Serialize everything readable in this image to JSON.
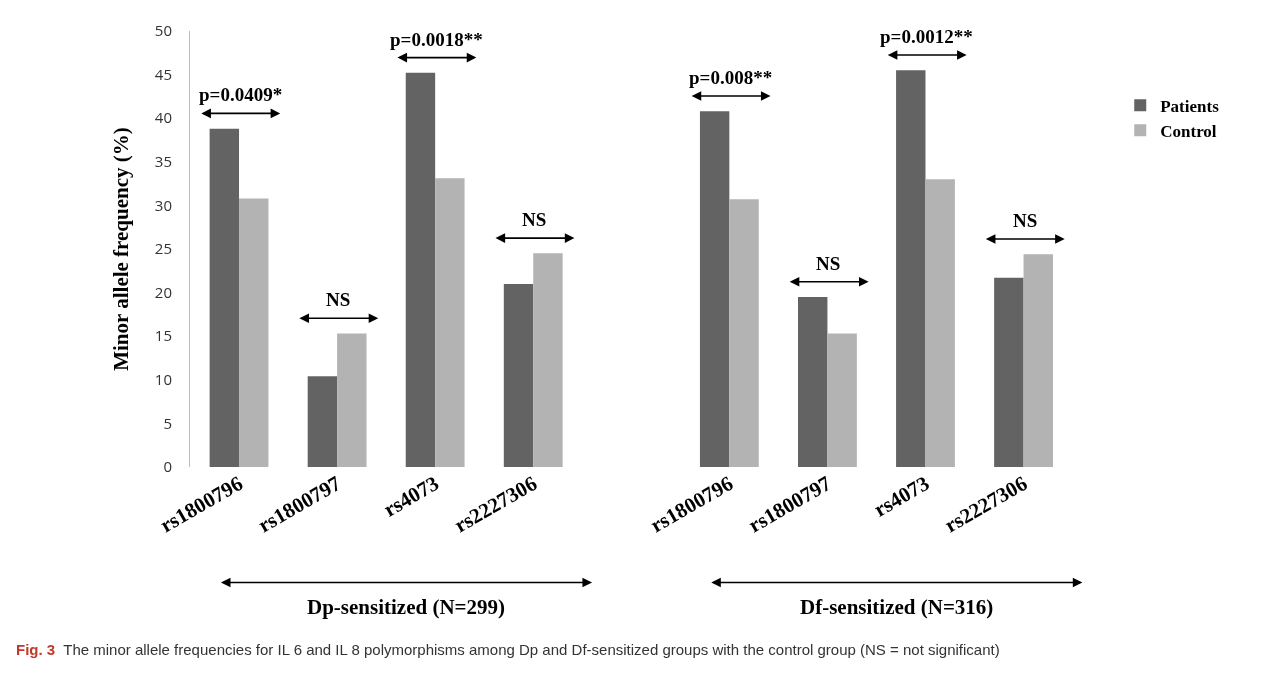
{
  "chart_data": {
    "type": "bar",
    "ylabel": "Minor allele frequency (%)",
    "categories": [
      "rs1800796",
      "rs1800797",
      "rs4073",
      "rs2227306",
      null,
      "rs1800796",
      "rs1800797",
      "rs4073",
      "rs2227306"
    ],
    "series": [
      {
        "name": "Patients",
        "color": "#636363",
        "values": [
          38.8,
          10.4,
          45.2,
          21.0,
          null,
          40.8,
          19.5,
          45.5,
          21.7
        ]
      },
      {
        "name": "Control",
        "color": "#b3b3b3",
        "values": [
          30.8,
          15.3,
          33.1,
          24.5,
          null,
          30.7,
          15.3,
          33.0,
          24.4
        ]
      }
    ],
    "ylim": [
      0,
      50
    ],
    "yticks": [
      0,
      5,
      10,
      15,
      20,
      25,
      30,
      35,
      40,
      45,
      50
    ],
    "grid": false,
    "legend": "right",
    "annotations": [
      "p=0.0409*",
      "NS",
      "p=0.0018**",
      "NS",
      "p=0.008**",
      "NS",
      "p=0.0012**",
      "NS",
      "Dp-sensitized (N=299)",
      "Df-sensitized (N=316)",
      "Fig. 3 The minor allele frequencies for IL 6 and IL 8 polymorphisms among Dp and Df-sensitized groups with the control group (NS = not significant)"
    ]
  }
}
